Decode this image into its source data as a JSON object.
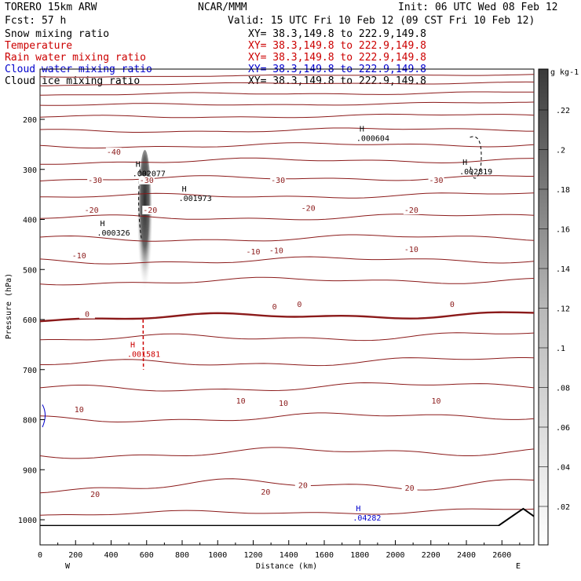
{
  "header": {
    "model": "TORERO  15km ARW",
    "org": "NCAR/MMM",
    "init": "Init: 06 UTC Wed 08 Feb 12",
    "fcst": "Fcst:   57 h",
    "valid": "Valid: 15 UTC Fri 10 Feb 12 (09 CST Fri 10 Feb 12)"
  },
  "fields": [
    {
      "label": "Snow mixing ratio",
      "xy": "XY=  38.3,149.8 to 222.9,149.8",
      "color": "#000000"
    },
    {
      "label": "Temperature",
      "xy": "XY=  38.3,149.8 to 222.9,149.8",
      "color": "#cc0000"
    },
    {
      "label": "Rain water mixing ratio",
      "xy": "XY=  38.3,149.8 to 222.9,149.8",
      "color": "#cc0000"
    },
    {
      "label": "Cloud water mixing ratio",
      "xy": "XY=  38.3,149.8 to 222.9,149.8",
      "color": "#0000cc"
    },
    {
      "label": "Cloud ice mixing ratio",
      "xy": "XY=  38.3,149.8 to 222.9,149.8",
      "color": "#000000"
    }
  ],
  "colors": {
    "temperature": "#8b1a1a",
    "rain": "#cc0000",
    "cloud_water": "#0000cc",
    "ice": "#000000"
  },
  "chart_data": {
    "type": "cross-section",
    "xlabel": "Distance (km)",
    "ylabel": "Pressure (hPa)",
    "xlim": [
      0,
      2780
    ],
    "ylim": [
      1050,
      100
    ],
    "x_ticks": [
      0,
      200,
      400,
      600,
      800,
      1000,
      1200,
      1400,
      1600,
      1800,
      2000,
      2200,
      2400,
      2600
    ],
    "y_ticks": [
      200,
      300,
      400,
      500,
      600,
      700,
      800,
      900,
      1000
    ],
    "west_label": "W",
    "east_label": "E",
    "colorbar": {
      "unit": "g kg-1",
      "labels": [
        ".22",
        ".2",
        ".18",
        ".16",
        ".14",
        ".12",
        ".1",
        ".08",
        ".06",
        ".04",
        ".02"
      ]
    },
    "temperature_labels": [
      {
        "text": "-40",
        "x": 415,
        "p": 266
      },
      {
        "text": "-30",
        "x": 310,
        "p": 322
      },
      {
        "text": "-30",
        "x": 600,
        "p": 322
      },
      {
        "text": "-30",
        "x": 1340,
        "p": 322
      },
      {
        "text": "-30",
        "x": 2230,
        "p": 322
      },
      {
        "text": "-20",
        "x": 290,
        "p": 382
      },
      {
        "text": "-20",
        "x": 620,
        "p": 382
      },
      {
        "text": "-20",
        "x": 1510,
        "p": 378
      },
      {
        "text": "-20",
        "x": 2090,
        "p": 382
      },
      {
        "text": "-10",
        "x": 220,
        "p": 473
      },
      {
        "text": "-10",
        "x": 1200,
        "p": 465
      },
      {
        "text": "-10",
        "x": 1330,
        "p": 463
      },
      {
        "text": "-10",
        "x": 2090,
        "p": 460
      },
      {
        "text": "0",
        "x": 265,
        "p": 590
      },
      {
        "text": "0",
        "x": 1320,
        "p": 575
      },
      {
        "text": "0",
        "x": 1460,
        "p": 570
      },
      {
        "text": "0",
        "x": 2320,
        "p": 570
      },
      {
        "text": "10",
        "x": 220,
        "p": 780
      },
      {
        "text": "10",
        "x": 1130,
        "p": 763
      },
      {
        "text": "10",
        "x": 1370,
        "p": 768
      },
      {
        "text": "10",
        "x": 2230,
        "p": 763
      },
      {
        "text": "20",
        "x": 310,
        "p": 950
      },
      {
        "text": "20",
        "x": 1270,
        "p": 945
      },
      {
        "text": "20",
        "x": 1480,
        "p": 932
      },
      {
        "text": "20",
        "x": 2080,
        "p": 937
      }
    ],
    "maxima": [
      {
        "value": ".002077",
        "x": 600,
        "p": 304,
        "color": "#000000"
      },
      {
        "value": ".001973",
        "x": 860,
        "p": 354,
        "color": "#000000"
      },
      {
        "value": ".000326",
        "x": 400,
        "p": 423,
        "color": "#000000"
      },
      {
        "value": ".000604",
        "x": 1860,
        "p": 234,
        "color": "#000000"
      },
      {
        "value": ".002819",
        "x": 2440,
        "p": 300,
        "color": "#000000"
      },
      {
        "value": ".001581",
        "x": 570,
        "p": 665,
        "color": "#cc0000"
      },
      {
        "value": ".04282",
        "x": 1840,
        "p": 992,
        "color": "#0000cc"
      }
    ],
    "h_marker": "H"
  }
}
